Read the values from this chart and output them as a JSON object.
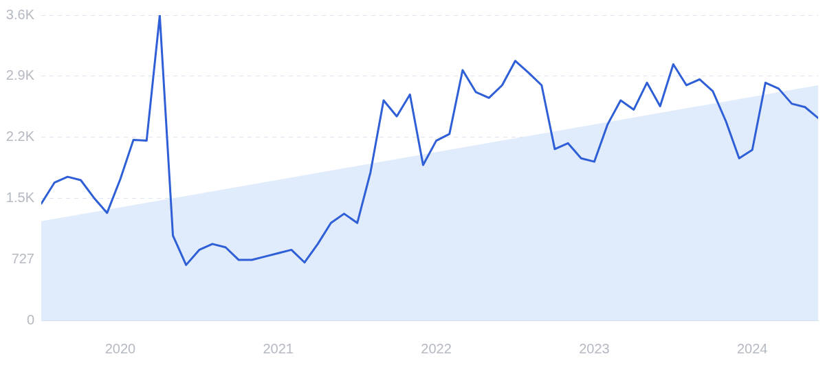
{
  "chart_data": {
    "type": "line",
    "x": [
      "2019-07",
      "2019-08",
      "2019-09",
      "2019-10",
      "2019-11",
      "2019-12",
      "2020-01",
      "2020-02",
      "2020-03",
      "2020-04",
      "2020-05",
      "2020-06",
      "2020-07",
      "2020-08",
      "2020-09",
      "2020-10",
      "2020-11",
      "2020-12",
      "2021-01",
      "2021-02",
      "2021-03",
      "2021-04",
      "2021-05",
      "2021-06",
      "2021-07",
      "2021-08",
      "2021-09",
      "2021-10",
      "2021-11",
      "2021-12",
      "2022-01",
      "2022-02",
      "2022-03",
      "2022-04",
      "2022-05",
      "2022-06",
      "2022-07",
      "2022-08",
      "2022-09",
      "2022-10",
      "2022-11",
      "2022-12",
      "2023-01",
      "2023-02",
      "2023-03",
      "2023-04",
      "2023-05",
      "2023-06",
      "2023-07",
      "2023-08",
      "2023-09",
      "2023-10",
      "2023-11",
      "2023-12",
      "2024-01",
      "2024-02",
      "2024-03",
      "2024-04",
      "2024-05",
      "2024-06"
    ],
    "series": [
      {
        "color": "#2f5fd6",
        "values": [
          1390,
          1640,
          1710,
          1670,
          1460,
          1280,
          1680,
          2150,
          2140,
          3630,
          1010,
          660,
          840,
          910,
          870,
          720,
          720,
          760,
          800,
          840,
          690,
          910,
          1160,
          1270,
          1160,
          1760,
          2620,
          2430,
          2690,
          1850,
          2140,
          2220,
          2980,
          2720,
          2650,
          2800,
          3090,
          2950,
          2800,
          2040,
          2110,
          1930,
          1890,
          2330,
          2620,
          2510,
          2830,
          2550,
          3050,
          2800,
          2870,
          2730,
          2370,
          1930,
          2030,
          2830,
          2760,
          2580,
          2540,
          2410
        ]
      },
      {
        "type": "area",
        "color": "#e0ebfb",
        "x": [
          "2019-07",
          "2024-06"
        ],
        "values": [
          1180,
          2800
        ]
      }
    ],
    "xlim": [
      "2019-07",
      "2024-06"
    ],
    "xticks": [
      "2020",
      "2021",
      "2022",
      "2023",
      "2024"
    ],
    "ylim": [
      0,
      3635
    ],
    "yticks": [
      0,
      727,
      {
        "value": 1454,
        "label": "1.5K"
      },
      {
        "value": 2181,
        "label": "2.2K"
      },
      {
        "value": 2908,
        "label": "2.9K"
      },
      {
        "value": 3635,
        "label": "3.6K"
      }
    ],
    "grid": "y",
    "legend": false,
    "marker": "none"
  }
}
